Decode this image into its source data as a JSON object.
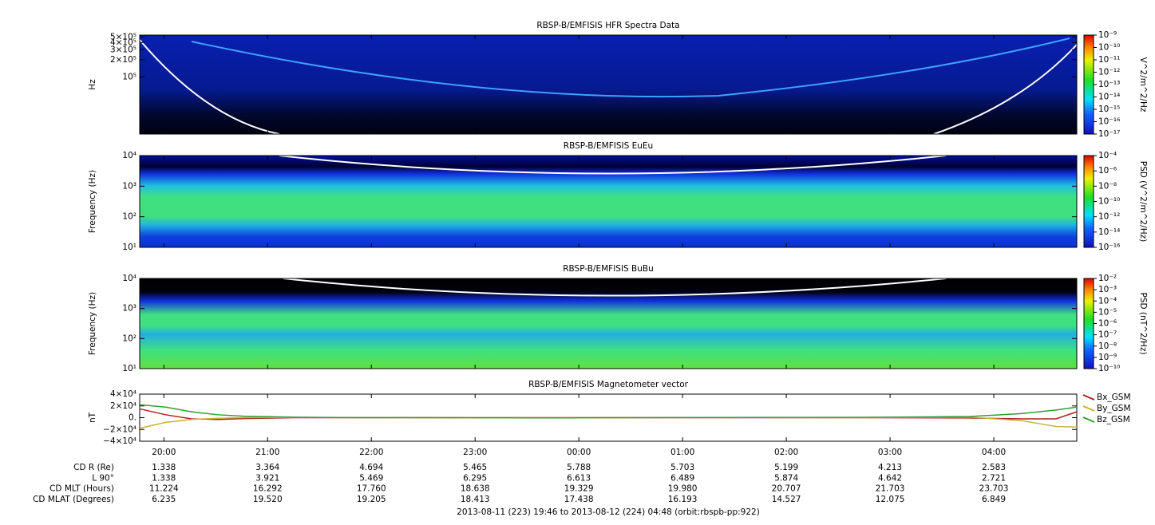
{
  "chart_data": [
    {
      "type": "spectrogram",
      "title": "RBSP-B/EMFISIS  HFR Spectra Data",
      "ylabel": "Hz",
      "log_y": true,
      "ylim": [
        10000,
        540000
      ],
      "yticks": [
        {
          "value": 500000,
          "label": "5×10⁵"
        },
        {
          "value": 400000,
          "label": "4×10⁵"
        },
        {
          "value": 300000,
          "label": "3×10⁵"
        },
        {
          "value": 200000,
          "label": "2×10⁵"
        },
        {
          "value": 100000,
          "label": "10⁵"
        }
      ],
      "colorbar": {
        "label": "V^2/m^2/Hz",
        "lim": [
          1e-17,
          1e-09
        ],
        "ticks": [
          {
            "value": 1e-09,
            "label": "10⁻⁹"
          },
          {
            "value": 1e-10,
            "label": "10⁻¹⁰"
          },
          {
            "value": 1e-11,
            "label": "10⁻¹¹"
          },
          {
            "value": 1e-12,
            "label": "10⁻¹²"
          },
          {
            "value": 1e-13,
            "label": "10⁻¹³"
          },
          {
            "value": 1e-14,
            "label": "10⁻¹⁴"
          },
          {
            "value": 1e-15,
            "label": "10⁻¹⁵"
          },
          {
            "value": 1e-16,
            "label": "10⁻¹⁶"
          },
          {
            "value": 1e-17,
            "label": "10⁻¹⁷"
          }
        ]
      }
    },
    {
      "type": "spectrogram",
      "title": "RBSP-B/EMFISIS  EuEu",
      "ylabel": "Frequency (Hz)",
      "log_y": true,
      "ylim": [
        10,
        10000
      ],
      "yticks": [
        {
          "value": 10000,
          "label": "10⁴"
        },
        {
          "value": 1000,
          "label": "10³"
        },
        {
          "value": 100,
          "label": "10²"
        },
        {
          "value": 10,
          "label": "10¹"
        }
      ],
      "colorbar": {
        "label": "PSD (V^2/m^2/Hz)",
        "lim": [
          1e-16,
          0.0001
        ],
        "ticks": [
          {
            "value": 0.0001,
            "label": "10⁻⁴"
          },
          {
            "value": 1e-06,
            "label": "10⁻⁶"
          },
          {
            "value": 1e-08,
            "label": "10⁻⁸"
          },
          {
            "value": 1e-10,
            "label": "10⁻¹⁰"
          },
          {
            "value": 1e-12,
            "label": "10⁻¹²"
          },
          {
            "value": 1e-14,
            "label": "10⁻¹⁴"
          },
          {
            "value": 1e-16,
            "label": "10⁻¹⁶"
          }
        ]
      }
    },
    {
      "type": "spectrogram",
      "title": "RBSP-B/EMFISIS  BuBu",
      "ylabel": "Frequency (Hz)",
      "log_y": true,
      "ylim": [
        10,
        10000
      ],
      "yticks": [
        {
          "value": 10000,
          "label": "10⁴"
        },
        {
          "value": 1000,
          "label": "10³"
        },
        {
          "value": 100,
          "label": "10²"
        },
        {
          "value": 10,
          "label": "10¹"
        }
      ],
      "colorbar": {
        "label": "PSD (nT^2/Hz)",
        "lim": [
          1e-10,
          0.01
        ],
        "ticks": [
          {
            "value": 0.01,
            "label": "10⁻²"
          },
          {
            "value": 0.001,
            "label": "10⁻³"
          },
          {
            "value": 0.0001,
            "label": "10⁻⁴"
          },
          {
            "value": 1e-05,
            "label": "10⁻⁵"
          },
          {
            "value": 1e-06,
            "label": "10⁻⁶"
          },
          {
            "value": 1e-07,
            "label": "10⁻⁷"
          },
          {
            "value": 1e-08,
            "label": "10⁻⁸"
          },
          {
            "value": 1e-09,
            "label": "10⁻⁹"
          },
          {
            "value": 1e-10,
            "label": "10⁻¹⁰"
          }
        ]
      }
    },
    {
      "type": "line",
      "title": "RBSP-B/EMFISIS  Magnetometer vector",
      "ylabel": "nT",
      "legend": "right",
      "xlim": [
        0,
        542
      ],
      "xticks": [
        {
          "value": 14,
          "label": "20:00"
        },
        {
          "value": 74,
          "label": "21:00"
        },
        {
          "value": 134,
          "label": "22:00"
        },
        {
          "value": 194,
          "label": "23:00"
        },
        {
          "value": 254,
          "label": "00:00"
        },
        {
          "value": 314,
          "label": "01:00"
        },
        {
          "value": 374,
          "label": "02:00"
        },
        {
          "value": 434,
          "label": "03:00"
        },
        {
          "value": 494,
          "label": "04:00"
        }
      ],
      "ylim": [
        -40000,
        40000
      ],
      "yticks": [
        {
          "value": 40000,
          "label": "4×10⁴"
        },
        {
          "value": 20000,
          "label": "2×10⁴"
        },
        {
          "value": 0,
          "label": "0."
        },
        {
          "value": -20000,
          "label": "−2×10⁴"
        },
        {
          "value": -40000,
          "label": "−4×10⁴"
        }
      ],
      "x": [
        0,
        15,
        30,
        45,
        60,
        90,
        120,
        180,
        240,
        300,
        360,
        420,
        480,
        510,
        530,
        542
      ],
      "series": [
        {
          "name": "Bx_GSM",
          "color": "#b02020",
          "values": [
            15000,
            5000,
            -2000,
            -3000,
            -1500,
            0,
            0,
            0,
            0,
            0,
            0,
            0,
            -500,
            -2000,
            -2000,
            10000
          ]
        },
        {
          "name": "By_GSM",
          "color": "#c8b030",
          "values": [
            -18000,
            -8000,
            -3000,
            -1000,
            0,
            500,
            300,
            0,
            -200,
            300,
            300,
            200,
            1000,
            -5000,
            -15000,
            -16000
          ]
        },
        {
          "name": "Bz_GSM",
          "color": "#30a030",
          "values": [
            22000,
            18000,
            10000,
            5000,
            2500,
            800,
            200,
            0,
            -300,
            200,
            500,
            600,
            2000,
            7000,
            13000,
            18000
          ]
        }
      ]
    }
  ],
  "ephemeris": {
    "rows": [
      {
        "label": "CD R (Re)",
        "values": [
          "1.338",
          "3.364",
          "4.694",
          "5.465",
          "5.788",
          "5.703",
          "5.199",
          "4.213",
          "2.583"
        ]
      },
      {
        "label": "L 90°",
        "values": [
          "1.338",
          "3.921",
          "5.469",
          "6.295",
          "6.613",
          "6.489",
          "5.874",
          "4.642",
          "2.721"
        ]
      },
      {
        "label": "CD MLT (Hours)",
        "values": [
          "11.224",
          "16.292",
          "17.760",
          "18.638",
          "19.329",
          "19.980",
          "20.707",
          "21.703",
          "23.703"
        ]
      },
      {
        "label": "CD MLAT (Degrees)",
        "values": [
          "6.235",
          "19.520",
          "19.205",
          "18.413",
          "17.438",
          "16.193",
          "14.527",
          "12.075",
          "6.849"
        ]
      }
    ]
  },
  "footer": "2013-08-11 (223) 19:46 to 2013-08-12 (224) 04:48 (orbit:rbspb-pp:922)"
}
